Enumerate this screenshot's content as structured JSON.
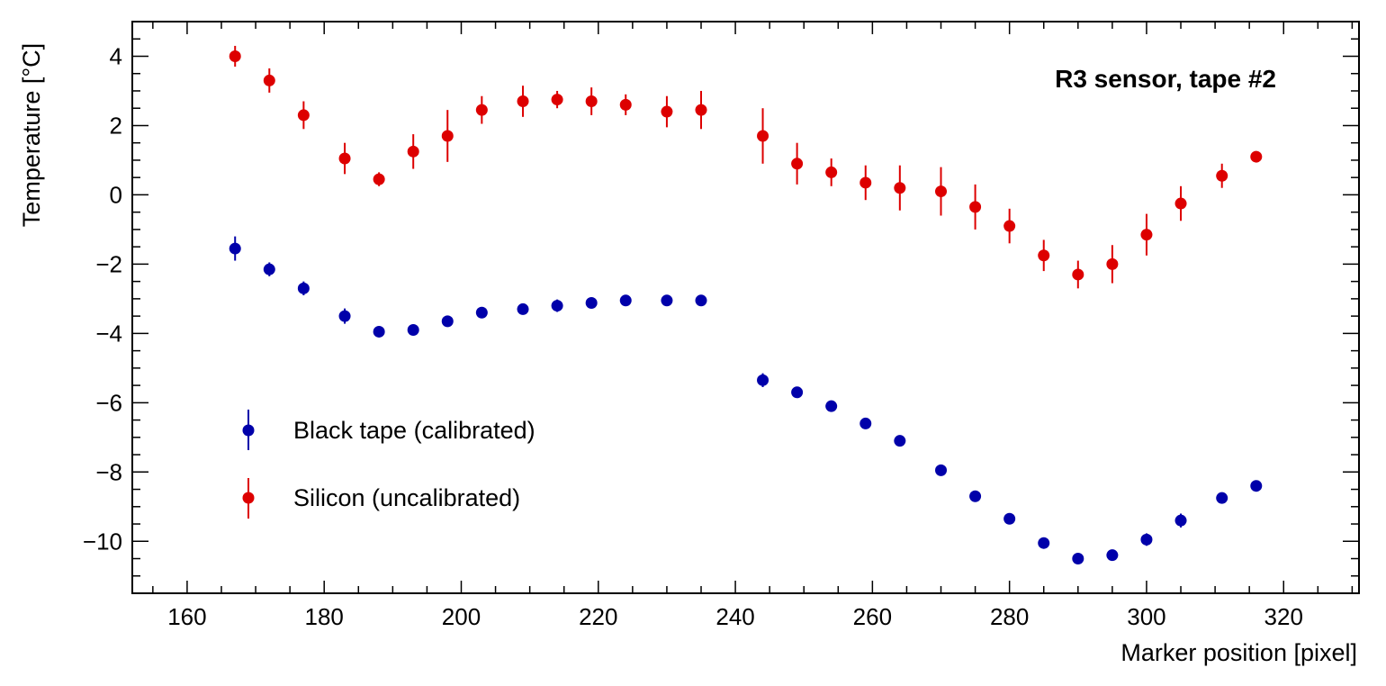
{
  "chart_data": {
    "type": "scatter",
    "title": "R3 sensor, tape #2",
    "xlabel": "Marker position [pixel]",
    "ylabel": "Temperature [°C]",
    "xlim": [
      152,
      331
    ],
    "ylim": [
      -11.5,
      5
    ],
    "x_ticks": [
      160,
      180,
      200,
      220,
      240,
      260,
      280,
      300,
      320
    ],
    "y_ticks": [
      -10,
      -8,
      -6,
      -4,
      -2,
      0,
      2,
      4
    ],
    "x_tick_labels": [
      "160",
      "180",
      "200",
      "220",
      "240",
      "260",
      "280",
      "300",
      "320"
    ],
    "y_tick_labels": [
      "−10",
      "−8",
      "−6",
      "−4",
      "−2",
      "0",
      "2",
      "4"
    ],
    "grid": false,
    "legend_position": "bottom-left",
    "series": [
      {
        "name": "Black tape (calibrated)",
        "color": "#0000aa",
        "x": [
          167,
          172,
          177,
          183,
          188,
          193,
          198,
          203,
          209,
          214,
          219,
          224,
          230,
          235,
          244,
          249,
          254,
          259,
          264,
          270,
          275,
          280,
          285,
          290,
          295,
          300,
          305,
          311,
          316
        ],
        "y": [
          -1.55,
          -2.15,
          -2.7,
          -3.5,
          -3.95,
          -3.9,
          -3.65,
          -3.4,
          -3.3,
          -3.2,
          -3.12,
          -3.05,
          -3.05,
          -3.05,
          -5.35,
          -5.7,
          -6.1,
          -6.6,
          -7.1,
          -7.95,
          -8.7,
          -9.35,
          -10.05,
          -10.5,
          -10.4,
          -9.95,
          -9.4,
          -8.75,
          -8.4
        ],
        "err": [
          0.35,
          0.2,
          0.2,
          0.22,
          0.1,
          0.15,
          0.12,
          0.15,
          0.1,
          0.18,
          0.1,
          0.05,
          0.05,
          0.05,
          0.2,
          0.1,
          0.1,
          0.1,
          0.1,
          0.15,
          0.15,
          0.15,
          0.1,
          0.08,
          0.08,
          0.18,
          0.2,
          0.1,
          0.08
        ]
      },
      {
        "name": "Silicon (uncalibrated)",
        "color": "#dd0000",
        "x": [
          167,
          172,
          177,
          183,
          188,
          193,
          198,
          203,
          209,
          214,
          219,
          224,
          230,
          235,
          244,
          249,
          254,
          259,
          264,
          270,
          275,
          280,
          285,
          290,
          295,
          300,
          305,
          311,
          316
        ],
        "y": [
          4.0,
          3.3,
          2.3,
          1.05,
          0.45,
          1.25,
          1.7,
          2.45,
          2.7,
          2.75,
          2.7,
          2.6,
          2.4,
          2.45,
          1.7,
          0.9,
          0.65,
          0.35,
          0.2,
          0.1,
          -0.35,
          -0.9,
          -1.75,
          -2.3,
          -2.0,
          -1.15,
          -0.25,
          0.55,
          1.1
        ],
        "err": [
          0.3,
          0.35,
          0.4,
          0.45,
          0.2,
          0.5,
          0.75,
          0.4,
          0.45,
          0.25,
          0.4,
          0.3,
          0.45,
          0.55,
          0.8,
          0.6,
          0.4,
          0.5,
          0.65,
          0.7,
          0.65,
          0.5,
          0.45,
          0.4,
          0.55,
          0.6,
          0.5,
          0.35,
          0.1
        ]
      }
    ]
  }
}
